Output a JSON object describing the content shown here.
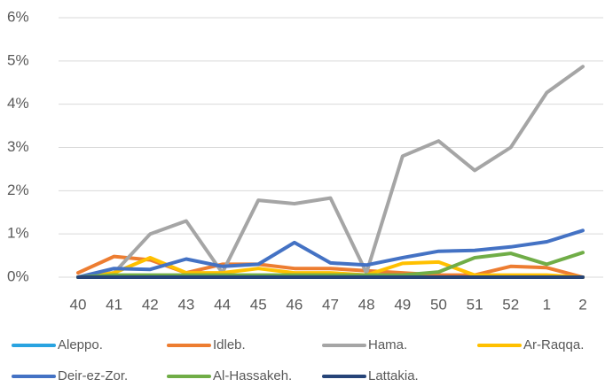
{
  "chart_data": {
    "type": "line",
    "categories": [
      "40",
      "41",
      "42",
      "43",
      "44",
      "45",
      "46",
      "47",
      "48",
      "49",
      "50",
      "51",
      "52",
      "1",
      "2"
    ],
    "ylim": [
      0,
      6
    ],
    "yticks": [
      {
        "value": 0,
        "label": "0%"
      },
      {
        "value": 1,
        "label": "1%"
      },
      {
        "value": 2,
        "label": "2%"
      },
      {
        "value": 3,
        "label": "3%"
      },
      {
        "value": 4,
        "label": "4%"
      },
      {
        "value": 5,
        "label": "5%"
      },
      {
        "value": 6,
        "label": "6%"
      }
    ],
    "grid": true,
    "legend": "bottom",
    "series": [
      {
        "name": "Aleppo.",
        "color": "#29a3e0",
        "values": [
          0,
          0,
          0,
          0,
          0,
          0.02,
          0,
          0,
          0,
          0,
          0,
          0,
          0,
          0,
          0
        ]
      },
      {
        "name": "Idleb.",
        "color": "#ed7d31",
        "values": [
          0.1,
          0.48,
          0.4,
          0.1,
          0.3,
          0.3,
          0.2,
          0.2,
          0.15,
          0.1,
          0.05,
          0.05,
          0.25,
          0.22,
          0
        ]
      },
      {
        "name": "Hama.",
        "color": "#a5a5a5",
        "values": [
          0,
          0.1,
          1.0,
          1.3,
          0.1,
          1.78,
          1.7,
          1.83,
          0.1,
          2.8,
          3.15,
          2.47,
          3.0,
          4.27,
          4.87
        ]
      },
      {
        "name": "Ar-Raqqa.",
        "color": "#ffc000",
        "values": [
          0,
          0.1,
          0.45,
          0.1,
          0.1,
          0.2,
          0.1,
          0.1,
          0.05,
          0.32,
          0.35,
          0.05,
          0.05,
          0.05,
          0
        ]
      },
      {
        "name": "Deir-ez-Zor.",
        "color": "#4472c4",
        "values": [
          0,
          0.2,
          0.18,
          0.42,
          0.25,
          0.3,
          0.8,
          0.33,
          0.28,
          0.45,
          0.6,
          0.62,
          0.7,
          0.82,
          1.08
        ]
      },
      {
        "name": "Al-Hassakeh.",
        "color": "#70ad47",
        "values": [
          0,
          0.05,
          0.05,
          0.05,
          0.05,
          0.05,
          0.05,
          0.05,
          0.05,
          0.05,
          0.12,
          0.45,
          0.55,
          0.3,
          0.57
        ]
      },
      {
        "name": "Lattakia.",
        "color": "#264478",
        "values": [
          0,
          0,
          0,
          0,
          0,
          0,
          0,
          0,
          0,
          0,
          0,
          0,
          0,
          0,
          0
        ]
      }
    ]
  }
}
